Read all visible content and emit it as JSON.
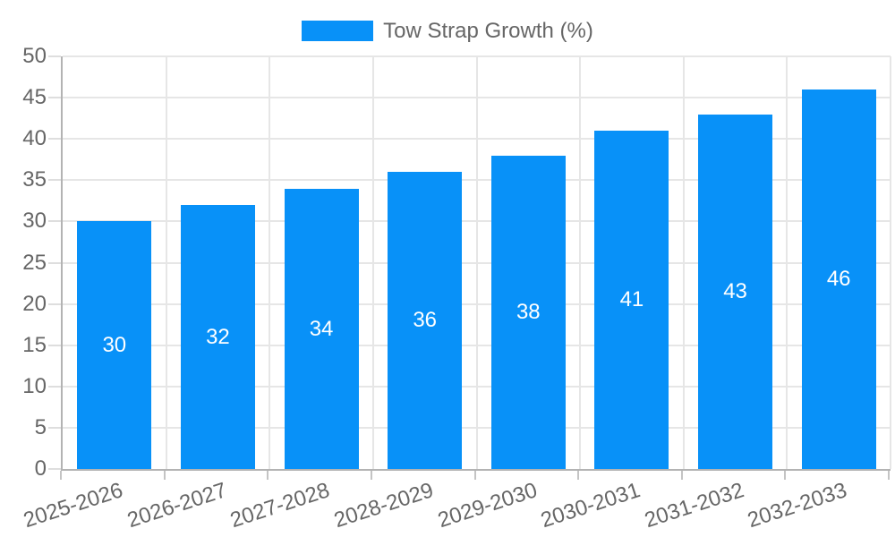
{
  "legend": {
    "label": "Tow Strap Growth (%)",
    "swatch_color": "#0891f8"
  },
  "chart_data": {
    "type": "bar",
    "title": "",
    "xlabel": "",
    "ylabel": "",
    "categories": [
      "2025-2026",
      "2026-2027",
      "2027-2028",
      "2028-2029",
      "2029-2030",
      "2030-2031",
      "2031-2032",
      "2032-2033"
    ],
    "series": [
      {
        "name": "Tow Strap Growth (%)",
        "values": [
          30,
          32,
          34,
          36,
          38,
          41,
          43,
          46
        ],
        "color": "#0891f8"
      }
    ],
    "bar_value_labels_shown": true,
    "bar_value_label_color": "#ffffff",
    "ylim": [
      0,
      50
    ],
    "yticks": [
      0,
      5,
      10,
      15,
      20,
      25,
      30,
      35,
      40,
      45,
      50
    ],
    "grid": true,
    "legend_position": "top",
    "colors": {
      "grid": "#e6e6e6",
      "axis_border": "#b3b3b3",
      "tick_text": "#666666",
      "y_tick_mark": "#dedede",
      "x_tick_mark": "#c4c4c4"
    }
  }
}
